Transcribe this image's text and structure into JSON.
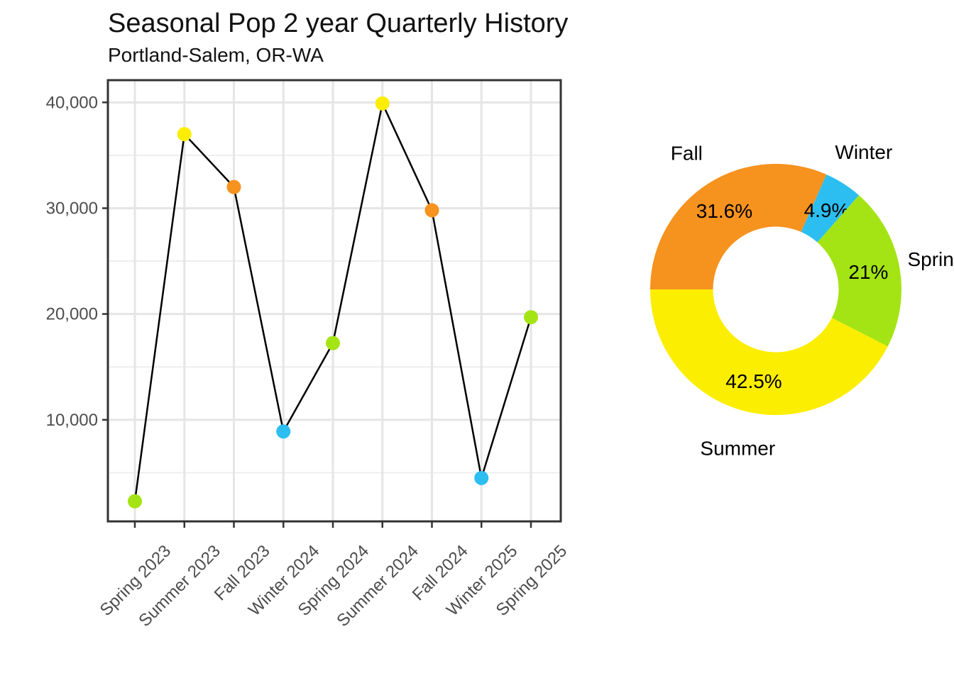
{
  "header": {
    "title": "Seasonal Pop 2 year Quarterly History",
    "subtitle": "Portland-Salem, OR-WA"
  },
  "colors": {
    "spring_green": "#A4E414",
    "summer_yellow": "#FCEE00",
    "fall_orange": "#F6921E",
    "winter_blue": "#2CBEF0",
    "line": "#000000",
    "axis_text": "#4D4D4D",
    "grid_major": "#E5E5E5",
    "grid_minor": "#ECECEC",
    "panel_border": "#333333",
    "background": "#FFFFFF",
    "label_text": "#000000"
  },
  "chart_data": [
    {
      "id": "quarterly-history-line",
      "type": "line",
      "title": "Seasonal Pop 2 year Quarterly History",
      "subtitle": "Portland-Salem, OR-WA",
      "categories": [
        "Spring 2023",
        "Summer 2023",
        "Fall 2023",
        "Winter 2024",
        "Spring 2024",
        "Summer 2024",
        "Fall 2024",
        "Winter 2025",
        "Spring 2025"
      ],
      "values": [
        2300,
        37000,
        32000,
        8900,
        17250,
        39900,
        29800,
        4500,
        19700
      ],
      "point_colors": [
        "#A4E414",
        "#FCEE00",
        "#F6921E",
        "#2CBEF0",
        "#A4E414",
        "#FCEE00",
        "#F6921E",
        "#2CBEF0",
        "#A4E414"
      ],
      "xlabel": "",
      "ylabel": "",
      "ylim": [
        400,
        42100
      ],
      "yticks": [
        10000,
        20000,
        30000,
        40000
      ],
      "ytick_labels": [
        "10,000",
        "20,000",
        "30,000",
        "40,000"
      ],
      "yticks_minor": [
        5000,
        15000,
        25000,
        35000
      ],
      "x_tick_label_angle_deg": 45,
      "grid": "on",
      "legend": "none",
      "panel": "white with black border"
    },
    {
      "id": "season-share-donut",
      "type": "pie",
      "subtype": "donut",
      "start_angle_deg": 270,
      "direction": "clockwise",
      "inner_radius_ratio": 0.5,
      "slices": [
        {
          "label": "Fall",
          "pct_label": "31.6%",
          "value": 31.6,
          "color": "#F6921E"
        },
        {
          "label": "Winter",
          "pct_label": "4.9%",
          "value": 4.9,
          "color": "#2CBEF0"
        },
        {
          "label": "Spring",
          "pct_label": "21%",
          "value": 21.0,
          "color": "#A4E414"
        },
        {
          "label": "Summer",
          "pct_label": "42.5%",
          "value": 42.5,
          "color": "#FCEE00"
        }
      ],
      "legend": "none"
    }
  ]
}
